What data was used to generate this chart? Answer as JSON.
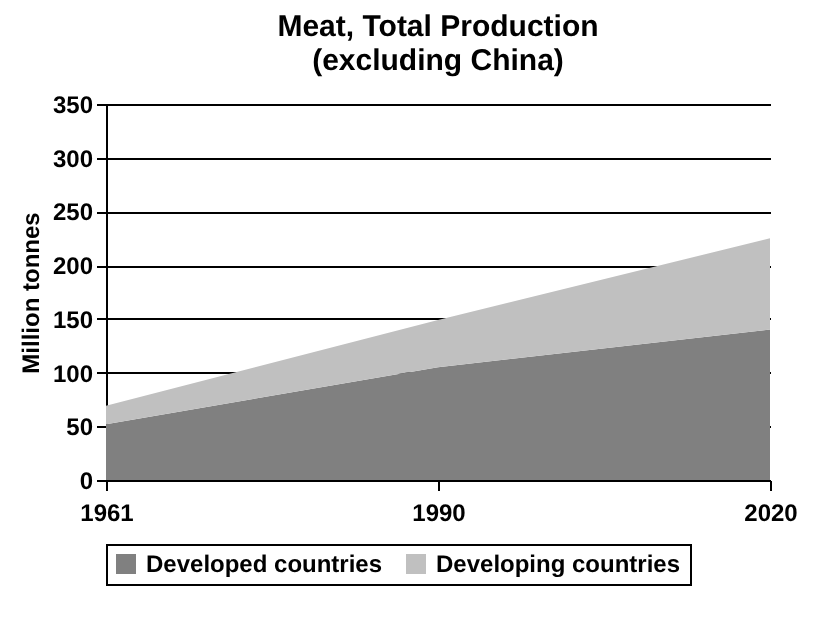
{
  "chart_data": {
    "type": "area",
    "title": [
      "Meat, Total Production",
      "(excluding China)"
    ],
    "ylabel": "Million tonnes",
    "categories": [
      "1961",
      "1990",
      "2020"
    ],
    "stacked": true,
    "series": [
      {
        "name": "Developed countries",
        "color": "#808080",
        "values": [
          52,
          105,
          140
        ]
      },
      {
        "name": "Developing countries",
        "color": "#c0c0c0",
        "values": [
          17,
          44,
          85
        ]
      }
    ],
    "ylim": [
      0,
      350
    ],
    "yticks": [
      0,
      50,
      100,
      150,
      200,
      250,
      300,
      350
    ],
    "grid": "y",
    "legend": "bottom"
  }
}
